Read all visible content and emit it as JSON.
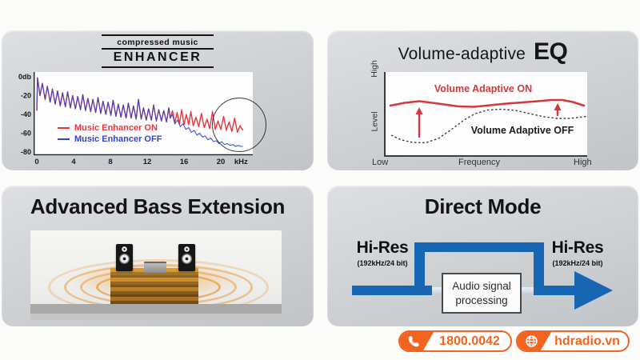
{
  "panel_enhancer": {
    "logo_top": "compressed music",
    "logo_main": "ENHANCER",
    "legend_on": "Music Enhancer ON",
    "legend_off": "Music Enhancer OFF",
    "on_color": "#e8353f",
    "off_color": "#3444c4"
  },
  "panel_eq": {
    "title_main": "Volume-adaptive",
    "title_accent": "EQ",
    "label_on": "Volume Adaptive ON",
    "label_off": "Volume Adaptive OFF",
    "axis_y_top": "High",
    "axis_y_mid": "Level",
    "axis_x_left": "Low",
    "axis_x_mid": "Frequency",
    "axis_x_right": "High",
    "red": "#d5383c"
  },
  "panel_bass": {
    "title": "Advanced Bass Extension"
  },
  "panel_direct": {
    "title": "Direct Mode",
    "hires_label": "Hi-Res",
    "hires_sub": "(192kHz/24 bit)",
    "box_line1": "Audio signal",
    "box_line2": "processing",
    "blue": "#1766b4"
  },
  "footer": {
    "phone": "1800.0042",
    "website": "hdradio.vn",
    "accent": "#f2641f"
  },
  "chart_data": [
    {
      "type": "line",
      "title": "compressed music ENHANCER",
      "xlabel": "kHz",
      "x_ticks": [
        0,
        4,
        8,
        12,
        16,
        20
      ],
      "x_unit": "kHz",
      "xlim": [
        0,
        22.5
      ],
      "ylim": [
        -80,
        0
      ],
      "y_tick_labels": [
        "0db",
        "-20",
        "-40",
        "-60",
        "-80"
      ],
      "y_tick_values": [
        0,
        -20,
        -40,
        -60,
        -80
      ],
      "legend_position": "lower-left",
      "annotation": "circle around 17-22 kHz showing enhancer restoring highs",
      "series": [
        {
          "name": "Music Enhancer ON",
          "color": "#e8353f"
        },
        {
          "name": "Music Enhancer OFF",
          "color": "#3444c4"
        }
      ],
      "shared_points": [
        [
          0,
          -36
        ],
        [
          0.08,
          -1
        ],
        [
          0.35,
          -20
        ],
        [
          0.6,
          -7
        ],
        [
          0.9,
          -24
        ],
        [
          1.15,
          -10
        ],
        [
          1.45,
          -27
        ],
        [
          1.7,
          -13
        ],
        [
          2.0,
          -29
        ],
        [
          2.25,
          -15
        ],
        [
          2.55,
          -31
        ],
        [
          2.8,
          -17
        ],
        [
          3.1,
          -32
        ],
        [
          3.35,
          -16
        ],
        [
          3.65,
          -33
        ],
        [
          3.9,
          -20
        ],
        [
          4.2,
          -34
        ],
        [
          4.45,
          -21
        ],
        [
          4.75,
          -35
        ],
        [
          5.0,
          -19
        ],
        [
          5.3,
          -36
        ],
        [
          5.55,
          -23
        ],
        [
          5.85,
          -37
        ],
        [
          6.1,
          -24
        ],
        [
          6.4,
          -38
        ],
        [
          6.65,
          -22
        ],
        [
          6.95,
          -39
        ],
        [
          7.2,
          -26
        ],
        [
          7.5,
          -40
        ],
        [
          7.75,
          -27
        ],
        [
          8.05,
          -41
        ],
        [
          8.3,
          -25
        ],
        [
          8.6,
          -42
        ],
        [
          8.85,
          -29
        ],
        [
          9.15,
          -43
        ],
        [
          9.4,
          -30
        ],
        [
          9.7,
          -44
        ],
        [
          9.95,
          -28
        ],
        [
          10.25,
          -44
        ],
        [
          10.5,
          -31
        ],
        [
          10.8,
          -45
        ],
        [
          11.05,
          -24
        ],
        [
          11.35,
          -45
        ],
        [
          11.6,
          -33
        ],
        [
          11.9,
          -46
        ],
        [
          12.15,
          -34
        ],
        [
          12.45,
          -46
        ],
        [
          12.7,
          -30
        ],
        [
          13.0,
          -47
        ],
        [
          13.25,
          -35
        ],
        [
          13.55,
          -47
        ],
        [
          13.8,
          -36
        ],
        [
          14.1,
          -48
        ],
        [
          14.35,
          -33
        ],
        [
          14.5,
          -44
        ]
      ],
      "on_tail": [
        [
          14.75,
          -36
        ],
        [
          15.0,
          -49
        ],
        [
          15.25,
          -38
        ],
        [
          15.5,
          -50
        ],
        [
          15.75,
          -35
        ],
        [
          16.0,
          -51
        ],
        [
          16.25,
          -40
        ],
        [
          16.5,
          -51
        ],
        [
          16.75,
          -37
        ],
        [
          17.0,
          -52
        ],
        [
          17.3,
          -43
        ],
        [
          17.6,
          -53
        ],
        [
          17.9,
          -39
        ],
        [
          18.2,
          -54
        ],
        [
          18.5,
          -45
        ],
        [
          18.8,
          -55
        ],
        [
          19.1,
          -37
        ],
        [
          19.4,
          -56
        ],
        [
          19.7,
          -47
        ],
        [
          20.0,
          -56
        ],
        [
          20.3,
          -42
        ],
        [
          20.6,
          -57
        ],
        [
          20.9,
          -48
        ],
        [
          21.2,
          -58
        ],
        [
          21.5,
          -44
        ],
        [
          21.8,
          -59
        ],
        [
          22.1,
          -52
        ],
        [
          22.4,
          -57
        ]
      ],
      "off_tail": [
        [
          14.75,
          -40
        ],
        [
          15.0,
          -50
        ],
        [
          15.3,
          -46
        ],
        [
          15.6,
          -53
        ],
        [
          15.9,
          -50
        ],
        [
          16.2,
          -56
        ],
        [
          16.5,
          -54
        ],
        [
          16.8,
          -59
        ],
        [
          17.1,
          -57
        ],
        [
          17.4,
          -62
        ],
        [
          17.7,
          -60
        ],
        [
          18.0,
          -64
        ],
        [
          18.3,
          -63
        ],
        [
          18.6,
          -67
        ],
        [
          18.9,
          -65
        ],
        [
          19.2,
          -69
        ],
        [
          19.5,
          -68
        ],
        [
          19.8,
          -71
        ],
        [
          20.1,
          -69
        ],
        [
          20.4,
          -72
        ],
        [
          20.7,
          -71
        ],
        [
          21.0,
          -73
        ],
        [
          21.3,
          -72
        ],
        [
          21.6,
          -74
        ],
        [
          21.9,
          -73
        ],
        [
          22.2,
          -74
        ],
        [
          22.4,
          -74
        ]
      ]
    },
    {
      "type": "line",
      "title": "Volume-adaptive EQ",
      "xlabel": "Frequency",
      "ylabel": "Level",
      "x_axis_labels": [
        "Low",
        "Frequency",
        "High"
      ],
      "y_axis_labels": [
        "Level",
        "High"
      ],
      "plot_size": [
        252,
        104
      ],
      "series": [
        {
          "name": "Volume Adaptive ON",
          "color": "#d5383c",
          "style": "solid",
          "points": [
            [
              6,
              42
            ],
            [
              24,
              38.5
            ],
            [
              42,
              36.5
            ],
            [
              62,
              39
            ],
            [
              91,
              43
            ],
            [
              111,
              43.5
            ],
            [
              131,
              41.5
            ],
            [
              151,
              39.5
            ],
            [
              171,
              38
            ],
            [
              190,
              36.5
            ],
            [
              207,
              35
            ],
            [
              221,
              35
            ],
            [
              234,
              37.5
            ],
            [
              248,
              42
            ]
          ]
        },
        {
          "name": "Volume Adaptive OFF",
          "color": "#3a3a3a",
          "style": "dotted",
          "points": [
            [
              7,
              79
            ],
            [
              20,
              85
            ],
            [
              34,
              88
            ],
            [
              50,
              88.5
            ],
            [
              66,
              83
            ],
            [
              82,
              72
            ],
            [
              98,
              60
            ],
            [
              112,
              52
            ],
            [
              128,
              47.5
            ],
            [
              145,
              46.5
            ],
            [
              162,
              48
            ],
            [
              180,
              52
            ],
            [
              198,
              56
            ],
            [
              214,
              58
            ],
            [
              230,
              58
            ],
            [
              243,
              56.5
            ],
            [
              251,
              55.5
            ]
          ]
        }
      ],
      "arrows": [
        {
          "x": 42,
          "y_from": 82,
          "y_to": 44
        },
        {
          "x": 215,
          "y_from": 55,
          "y_to": 39
        }
      ]
    }
  ]
}
